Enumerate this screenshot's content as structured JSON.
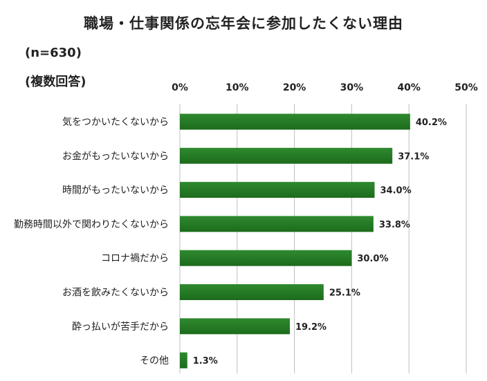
{
  "title": "職場・仕事関係の忘年会に参加したくない理由",
  "sample_size": "(n=630)",
  "multi_answer": "(複数回答)",
  "colors": {
    "bar": "#1c6b1c",
    "bar_light": "#2f8a2f",
    "grid": "#bfbfbf"
  },
  "chart_data": {
    "type": "bar",
    "orientation": "horizontal",
    "title": "職場・仕事関係の忘年会に参加したくない理由",
    "categories": [
      "気をつかいたくないから",
      "お金がもったいないから",
      "時間がもったいないから",
      "勤務時間以外で関わりたくないから",
      "コロナ禍だから",
      "お酒を飲みたくないから",
      "酔っ払いが苦手だから",
      "その他"
    ],
    "values": [
      40.2,
      37.1,
      34.0,
      33.8,
      30.0,
      25.1,
      19.2,
      1.3
    ],
    "value_labels": [
      "40.2%",
      "37.1%",
      "34.0%",
      "33.8%",
      "30.0%",
      "25.1%",
      "19.2%",
      "1.3%"
    ],
    "xlim": [
      0,
      50
    ],
    "x_ticks": [
      0,
      10,
      20,
      30,
      40,
      50
    ],
    "x_tick_labels": [
      "0%",
      "10%",
      "20%",
      "30%",
      "40%",
      "50%"
    ],
    "xlabel": "",
    "ylabel": "",
    "grid": true,
    "axis_position": "top"
  }
}
